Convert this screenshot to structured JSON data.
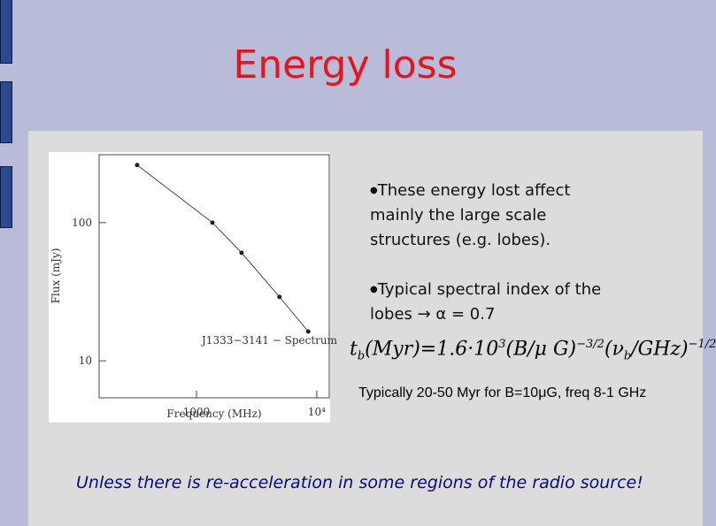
{
  "title": "Energy loss",
  "bullets": [
    "These energy lost affect mainly the large scale structures (e.g. lobes).",
    "Typical spectral index of the lobes → α = 0.7"
  ],
  "formula": [
    "t",
    "b",
    "(Myr)=1.6·10",
    "3",
    "(B/μ G)",
    "−3/2",
    "(ν",
    "b",
    "/GHz)",
    "−1/2"
  ],
  "note": "Typically 20-50 Myr for B=10μG, freq 8-1 GHz",
  "footer": "Unless there is re-acceleration in some regions of the radio source!",
  "chart_data": {
    "type": "line",
    "annotation": "J1333−3141 − Spectrum",
    "x_label": "Frequency (MHz)",
    "y_label": "Flux (mJy)",
    "x": [
      321,
      1356,
      2370,
      4900,
      8500
    ],
    "values": [
      261,
      100,
      60.5,
      29,
      16.3
    ],
    "xlog": true,
    "ylog": true,
    "color": "#222222",
    "xlim": [
      155,
      12700
    ],
    "ylim": [
      5.4,
      310
    ],
    "xticks": [
      1000,
      {
        "value": 10000,
        "label": "10⁴"
      }
    ],
    "yticks": [
      10,
      100
    ]
  }
}
